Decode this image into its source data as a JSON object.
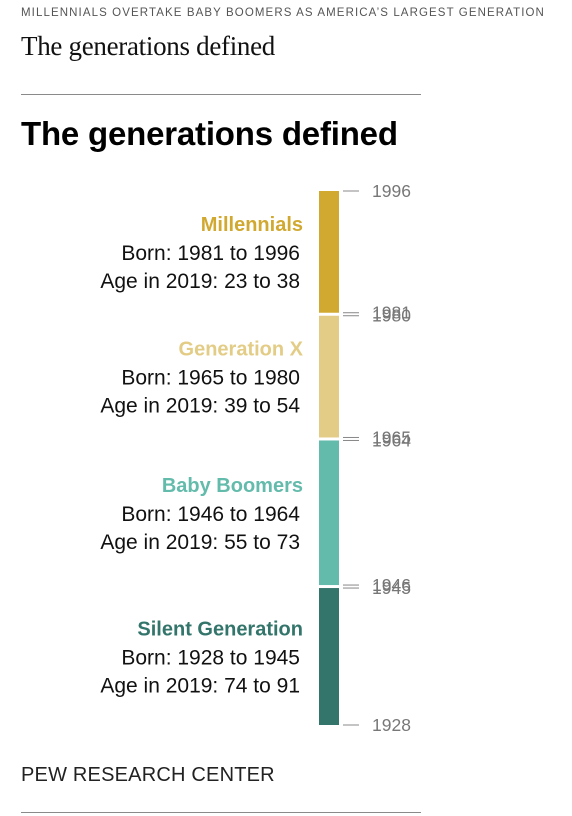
{
  "header": {
    "kicker": "MILLENNIALS OVERTAKE BABY BOOMERS AS AMERICA’S LARGEST GENERATION",
    "headline": "The generations defined"
  },
  "chart_data": {
    "type": "bar",
    "title": "The generations defined",
    "orientation": "vertical-timeline",
    "ylim": [
      1928,
      1996
    ],
    "series": [
      {
        "name": "Millennials",
        "born_label": "Born: 1981 to 1996",
        "age_label": "Age in 2019: 23 to 38",
        "start": 1981,
        "end": 1996,
        "tick_top": "1996",
        "tick_bottom": "1981",
        "color": "#d1a930"
      },
      {
        "name": "Generation X",
        "born_label": "Born: 1965 to 1980",
        "age_label": "Age in 2019: 39 to 54",
        "start": 1965,
        "end": 1980,
        "tick_top": "1980",
        "tick_bottom": "1965",
        "color": "#e3cc85"
      },
      {
        "name": "Baby Boomers",
        "born_label": "Born: 1946 to 1964",
        "age_label": "Age in 2019: 55 to 73",
        "start": 1946,
        "end": 1964,
        "tick_top": "1964",
        "tick_bottom": "1946",
        "color": "#63bbab"
      },
      {
        "name": "Silent Generation",
        "born_label": "Born: 1928 to 1945",
        "age_label": "Age in 2019: 74 to 91",
        "start": 1928,
        "end": 1945,
        "tick_top": "1945",
        "tick_bottom": "1928",
        "color": "#33756a"
      }
    ]
  },
  "footer": {
    "source": "PEW RESEARCH CENTER"
  }
}
